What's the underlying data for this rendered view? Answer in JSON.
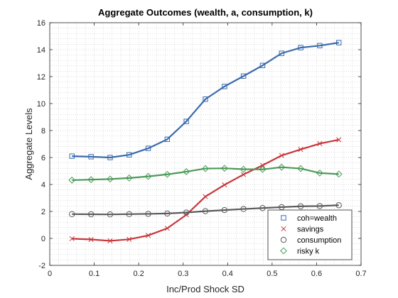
{
  "chart_data": {
    "type": "line",
    "title": "Aggregate Outcomes (wealth, a, consumption, k)",
    "xlabel": "Inc/Prod Shock SD",
    "ylabel": "Aggregate Levels",
    "xlim": [
      0,
      0.7
    ],
    "ylim": [
      -2,
      16
    ],
    "xticks": [
      "0",
      "0.1",
      "0.2",
      "0.3",
      "0.4",
      "0.5",
      "0.6",
      "0.7"
    ],
    "yticks": [
      "-2",
      "0",
      "2",
      "4",
      "6",
      "8",
      "10",
      "12",
      "14",
      "16"
    ],
    "grid": "dotted-minor",
    "legend_position": "bottom-right",
    "x": [
      0.05,
      0.0929,
      0.1357,
      0.1786,
      0.2214,
      0.2643,
      0.3071,
      0.35,
      0.3929,
      0.4357,
      0.4786,
      0.5214,
      0.5643,
      0.6071,
      0.65
    ],
    "series": [
      {
        "name": "coh=wealth",
        "marker": "square",
        "color": "#3a6bad",
        "values": [
          6.1,
          6.06,
          6.0,
          6.2,
          6.68,
          7.35,
          8.68,
          10.33,
          11.27,
          12.04,
          12.83,
          13.73,
          14.15,
          14.3,
          14.52
        ]
      },
      {
        "name": "savings",
        "marker": "x",
        "color": "#c8353a",
        "values": [
          -0.02,
          -0.08,
          -0.18,
          -0.07,
          0.22,
          0.75,
          1.75,
          3.1,
          3.97,
          4.74,
          5.42,
          6.15,
          6.6,
          7.03,
          7.32
        ]
      },
      {
        "name": "consumption",
        "marker": "circle",
        "color": "#5a5a5a",
        "values": [
          1.8,
          1.79,
          1.78,
          1.8,
          1.82,
          1.85,
          1.92,
          2.02,
          2.1,
          2.18,
          2.25,
          2.32,
          2.38,
          2.4,
          2.46
        ]
      },
      {
        "name": "risky k",
        "marker": "diamond",
        "color": "#4b9a58",
        "values": [
          4.32,
          4.36,
          4.4,
          4.48,
          4.6,
          4.75,
          4.95,
          5.18,
          5.2,
          5.13,
          5.12,
          5.28,
          5.18,
          4.85,
          4.77
        ]
      }
    ]
  }
}
